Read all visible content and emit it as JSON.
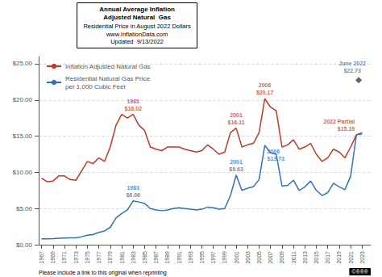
{
  "chart_data": {
    "type": "line",
    "title": "Annual Average Inflation\nAdjusted Natural  Gas",
    "subtitle": "Residential Price in August 2022 Dollars\nwww.InflationData.com\nUpdated  9/13/2022",
    "x": [
      1967,
      1968,
      1969,
      1970,
      1971,
      1972,
      1973,
      1974,
      1975,
      1976,
      1977,
      1978,
      1979,
      1980,
      1981,
      1982,
      1983,
      1984,
      1985,
      1986,
      1987,
      1988,
      1989,
      1990,
      1991,
      1992,
      1993,
      1994,
      1995,
      1996,
      1997,
      1998,
      1999,
      2000,
      2001,
      2002,
      2003,
      2004,
      2005,
      2006,
      2007,
      2008,
      2009,
      2010,
      2011,
      2012,
      2013,
      2014,
      2015,
      2016,
      2017,
      2018,
      2019,
      2020,
      2021,
      2022,
      2023
    ],
    "series": [
      {
        "name": "Inflation Adjusted Natural Gas",
        "color": "#c0392b",
        "values": [
          9.2,
          8.7,
          8.8,
          9.5,
          9.5,
          9.0,
          8.9,
          10.2,
          11.5,
          11.2,
          12.0,
          11.5,
          13.5,
          16.5,
          18.0,
          17.5,
          18.02,
          16.5,
          15.8,
          13.5,
          13.2,
          13.0,
          13.5,
          13.5,
          13.5,
          13.2,
          13.0,
          12.8,
          13.0,
          13.8,
          13.2,
          12.5,
          12.8,
          15.5,
          16.11,
          13.5,
          13.8,
          14.0,
          15.5,
          20.17,
          19.0,
          18.5,
          13.5,
          13.8,
          14.5,
          13.2,
          13.5,
          14.0,
          12.5,
          11.5,
          12.0,
          13.2,
          12.8,
          12.0,
          13.5,
          15.19,
          15.5
        ]
      },
      {
        "name": "Residential Natural Gas Price\nper 1,000 Cubic Feet",
        "color": "#2e75b6",
        "values": [
          0.8,
          0.82,
          0.84,
          0.88,
          0.92,
          0.94,
          0.96,
          1.1,
          1.3,
          1.4,
          1.7,
          1.9,
          2.4,
          3.7,
          4.3,
          4.8,
          6.06,
          5.9,
          5.7,
          5.0,
          4.8,
          4.7,
          4.8,
          5.0,
          5.1,
          5.0,
          4.9,
          4.8,
          4.9,
          5.2,
          5.1,
          4.9,
          5.0,
          6.8,
          9.63,
          7.5,
          7.8,
          8.0,
          9.0,
          13.73,
          12.7,
          12.5,
          8.1,
          8.2,
          8.9,
          7.5,
          8.0,
          8.8,
          7.5,
          6.8,
          7.2,
          8.5,
          8.0,
          7.6,
          9.5,
          15.19,
          15.3
        ]
      }
    ],
    "points": [
      {
        "x": 2022.4,
        "y": 22.73,
        "color": "#2e4057",
        "marker": "diamond"
      }
    ],
    "annotations": [
      {
        "x": 1983,
        "y": 18.02,
        "text": "1983\n$18.02",
        "color": "#c0392b"
      },
      {
        "x": 2001,
        "y": 16.11,
        "text": "2001\n$16.11",
        "color": "#c0392b"
      },
      {
        "x": 2006,
        "y": 20.17,
        "text": "2006\n$20.17",
        "color": "#c0392b"
      },
      {
        "x": 2022,
        "y": 15.19,
        "text": "2022 Partial\n$15.19",
        "color": "#c0392b"
      },
      {
        "x": 1983,
        "y": 6.06,
        "text": "1983\n$6.06",
        "color": "#2e75b6"
      },
      {
        "x": 2001,
        "y": 9.63,
        "text": "2001\n$9.63",
        "color": "#2e75b6"
      },
      {
        "x": 2006,
        "y": 13.73,
        "text": "2006\n$13.73",
        "color": "#2e75b6"
      },
      {
        "x": 2022.4,
        "y": 22.73,
        "text": "June 2022\n$22.73",
        "color": "#2e75b6"
      }
    ],
    "xlim": [
      1966.5,
      2024.5
    ],
    "xticks": [
      1967,
      1969,
      1971,
      1973,
      1975,
      1977,
      1979,
      1981,
      1983,
      1985,
      1987,
      1989,
      1991,
      1993,
      1995,
      1997,
      1999,
      2001,
      2003,
      2005,
      2007,
      2009,
      2011,
      2013,
      2015,
      2017,
      2019,
      2021,
      2023
    ],
    "ylim": [
      0,
      26
    ],
    "yticks": [
      {
        "value": 0,
        "label": "$0.00"
      },
      {
        "value": 5,
        "label": "$5.00"
      },
      {
        "value": 10,
        "label": "$10.00"
      },
      {
        "value": 15,
        "label": "$15.00"
      },
      {
        "value": 20,
        "label": "$20.00"
      },
      {
        "value": 25,
        "label": "$25.00"
      }
    ],
    "grid": true,
    "legend": "upper left",
    "footer": "Please include a link to this original when reprinting",
    "badge": "©®®®"
  }
}
